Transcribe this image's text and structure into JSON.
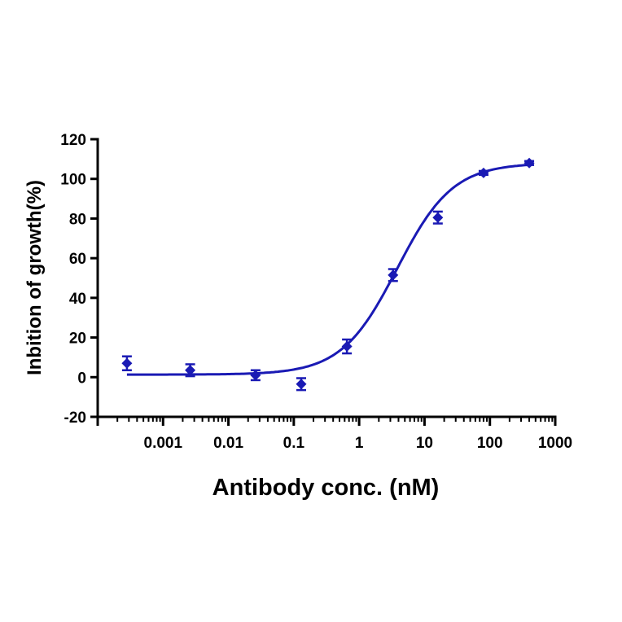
{
  "chart_data": {
    "type": "scatter",
    "xlabel": "Antibody conc. (nM)",
    "ylabel": "Inbition of growth(%)",
    "x_scale": "log",
    "xlim": [
      0.0001,
      1000
    ],
    "ylim": [
      -20,
      120
    ],
    "x_ticks": [
      0.001,
      0.01,
      0.1,
      1,
      10,
      100,
      1000
    ],
    "x_tick_labels": [
      "0.001",
      "0.01",
      "0.1",
      "1",
      "10",
      "100",
      "1000"
    ],
    "y_ticks": [
      -20,
      0,
      20,
      40,
      60,
      80,
      100,
      120
    ],
    "y_tick_labels": [
      "-20",
      "0",
      "20",
      "40",
      "60",
      "80",
      "100",
      "120"
    ],
    "grid": false,
    "color": "#1a1ab4",
    "series": [
      {
        "points": [
          {
            "x": 0.00028,
            "y": 7,
            "err": 3.5
          },
          {
            "x": 0.0026,
            "y": 3.5,
            "err": 3
          },
          {
            "x": 0.026,
            "y": 1,
            "err": 2.5
          },
          {
            "x": 0.13,
            "y": -3.5,
            "err": 3
          },
          {
            "x": 0.65,
            "y": 15.5,
            "err": 3.5
          },
          {
            "x": 3.3,
            "y": 51.5,
            "err": 3
          },
          {
            "x": 16,
            "y": 80.5,
            "err": 3
          },
          {
            "x": 80,
            "y": 103,
            "err": 1
          },
          {
            "x": 400,
            "y": 108,
            "err": 1
          }
        ],
        "fit_curve": {
          "bottom": 1.3,
          "top": 108,
          "ec50": 3.8,
          "hill": 1.02
        }
      }
    ]
  }
}
